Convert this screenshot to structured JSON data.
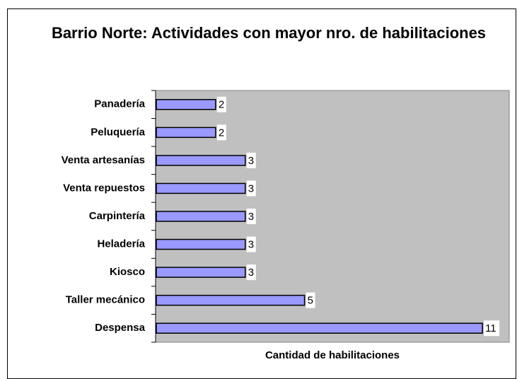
{
  "chart_data": {
    "type": "barh",
    "title": "Barrio Norte: Actividades con mayor nro. de habilitaciones",
    "xlabel": "Cantidad de habilitaciones",
    "categories": [
      "Panadería",
      "Peluquería",
      "Venta artesanías",
      "Venta repuestos",
      "Carpintería",
      "Heladería",
      "Kiosco",
      "Taller mecánico",
      "Despensa"
    ],
    "values": [
      2,
      2,
      3,
      3,
      3,
      3,
      3,
      5,
      11
    ],
    "color": "#9999ff",
    "xlim": [
      0,
      12
    ],
    "grid": false
  }
}
